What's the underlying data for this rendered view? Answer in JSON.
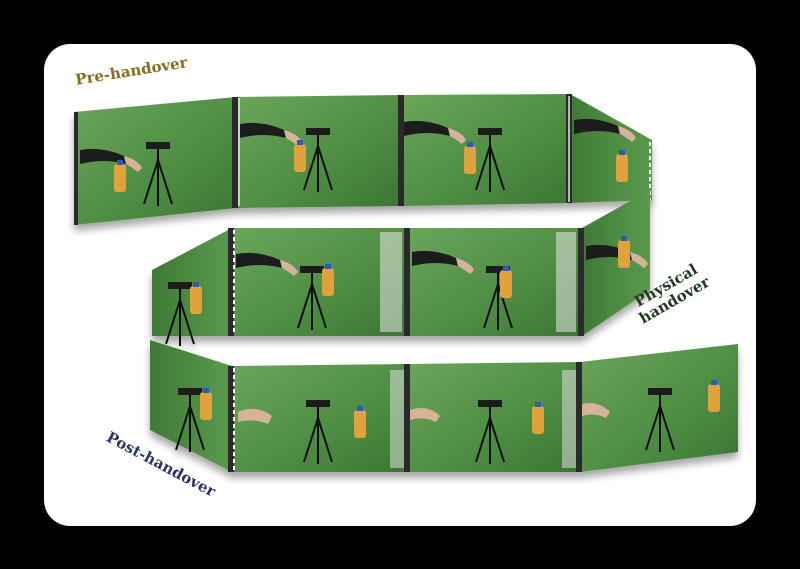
{
  "labels": {
    "pre_handover": "Pre-handover",
    "physical_handover_line1": "Physical",
    "physical_handover_line2": "handover",
    "post_handover": "Post-handover"
  },
  "colors": {
    "background": "#000000",
    "card": "#ffffff",
    "screen_green": "#4f8f45",
    "pre_label": "#8a6a1f",
    "physical_label": "#1f3a1f",
    "post_label": "#2a3566"
  }
}
